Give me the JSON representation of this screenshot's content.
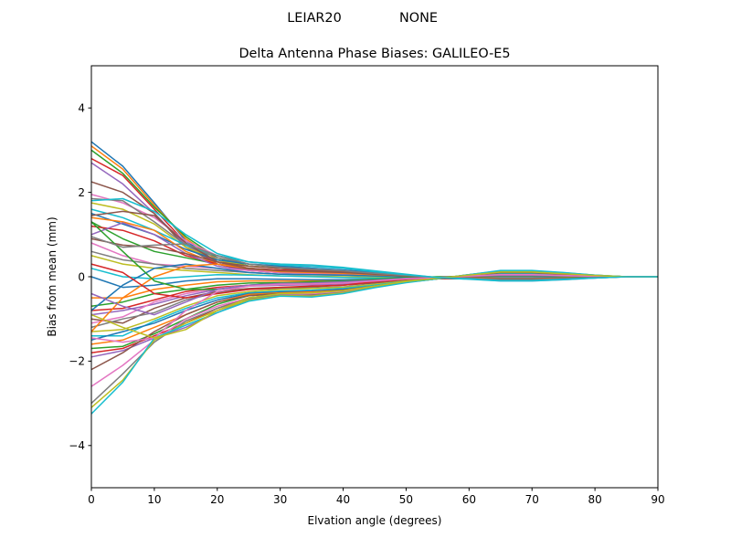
{
  "figure": {
    "suptitle_antenna": "LEIAR20",
    "suptitle_radome": "NONE"
  },
  "chart_data": {
    "type": "line",
    "title": "Delta Antenna Phase Biases: GALILEO-E5",
    "xlabel": "Elvation angle (degrees)",
    "ylabel": "Bias from mean (mm)",
    "xlim": [
      0,
      90
    ],
    "ylim": [
      -5,
      5
    ],
    "xticks": [
      0,
      10,
      20,
      30,
      40,
      50,
      60,
      70,
      80,
      90
    ],
    "yticks": [
      -4,
      -2,
      0,
      2,
      4
    ],
    "ytick_labels": [
      "−4",
      "−2",
      "0",
      "2",
      "4"
    ],
    "grid": false,
    "legend": "none",
    "x": [
      0,
      5,
      10,
      15,
      20,
      25,
      30,
      35,
      40,
      45,
      50,
      55,
      60,
      65,
      70,
      75,
      80,
      85,
      90
    ],
    "series": [
      {
        "values": [
          3.2,
          2.62,
          1.75,
          0.85,
          0.35,
          0.18,
          0.12,
          0.1,
          0.08,
          0.05,
          0.0,
          -0.05,
          -0.05,
          -0.08,
          -0.08,
          -0.05,
          -0.03,
          0.0,
          0.0
        ]
      },
      {
        "values": [
          3.1,
          2.55,
          1.7,
          0.9,
          0.4,
          0.2,
          0.15,
          0.12,
          0.1,
          0.06,
          0.02,
          -0.03,
          -0.04,
          -0.06,
          -0.06,
          -0.04,
          -0.02,
          0.0,
          0.0
        ]
      },
      {
        "values": [
          3.0,
          2.45,
          1.65,
          0.95,
          0.45,
          0.25,
          0.2,
          0.15,
          0.12,
          0.08,
          0.03,
          -0.02,
          -0.03,
          -0.05,
          -0.05,
          -0.03,
          -0.02,
          0.0,
          0.0
        ]
      },
      {
        "values": [
          2.8,
          2.4,
          1.6,
          0.8,
          0.3,
          0.15,
          0.1,
          0.08,
          0.05,
          0.02,
          -0.02,
          -0.05,
          -0.04,
          -0.06,
          -0.06,
          -0.04,
          -0.02,
          0.0,
          0.0
        ]
      },
      {
        "values": [
          2.7,
          2.2,
          1.5,
          0.75,
          0.35,
          0.2,
          0.12,
          0.1,
          0.08,
          0.05,
          0.0,
          -0.03,
          -0.03,
          -0.05,
          -0.05,
          -0.03,
          -0.02,
          0.0,
          0.0
        ]
      },
      {
        "values": [
          2.25,
          2.0,
          1.5,
          0.7,
          0.3,
          0.18,
          0.14,
          0.1,
          0.08,
          0.05,
          0.02,
          -0.02,
          -0.03,
          -0.04,
          -0.04,
          -0.03,
          -0.01,
          0.0,
          0.0
        ]
      },
      {
        "values": [
          1.95,
          1.75,
          1.4,
          0.85,
          0.5,
          0.35,
          0.28,
          0.25,
          0.2,
          0.12,
          0.05,
          -0.02,
          -0.05,
          -0.1,
          -0.1,
          -0.07,
          -0.03,
          0.0,
          0.0
        ]
      },
      {
        "values": [
          1.85,
          1.8,
          1.3,
          0.75,
          0.45,
          0.3,
          0.25,
          0.2,
          0.15,
          0.1,
          0.04,
          -0.02,
          -0.05,
          -0.08,
          -0.08,
          -0.06,
          -0.02,
          0.0,
          0.0
        ]
      },
      {
        "values": [
          1.75,
          1.6,
          1.25,
          0.7,
          0.4,
          0.25,
          0.2,
          0.18,
          0.14,
          0.08,
          0.03,
          -0.03,
          -0.04,
          -0.07,
          -0.07,
          -0.05,
          -0.02,
          0.0,
          0.0
        ]
      },
      {
        "values": [
          1.6,
          1.4,
          1.1,
          0.75,
          0.5,
          0.35,
          0.3,
          0.28,
          0.22,
          0.14,
          0.06,
          -0.02,
          -0.06,
          -0.1,
          -0.1,
          -0.07,
          -0.03,
          0.0,
          0.0
        ]
      },
      {
        "values": [
          1.5,
          1.25,
          1.0,
          0.65,
          0.4,
          0.3,
          0.25,
          0.2,
          0.16,
          0.1,
          0.04,
          -0.02,
          -0.04,
          -0.07,
          -0.07,
          -0.05,
          -0.02,
          0.0,
          0.0
        ]
      },
      {
        "values": [
          1.4,
          1.3,
          1.1,
          0.6,
          0.3,
          0.2,
          0.15,
          0.13,
          0.1,
          0.06,
          0.02,
          -0.03,
          -0.04,
          -0.06,
          -0.06,
          -0.04,
          -0.02,
          0.0,
          0.0
        ]
      },
      {
        "values": [
          1.3,
          0.9,
          0.6,
          0.45,
          0.3,
          0.2,
          0.15,
          0.12,
          0.1,
          0.06,
          0.02,
          -0.02,
          -0.03,
          -0.05,
          -0.05,
          -0.03,
          -0.01,
          0.0,
          0.0
        ]
      },
      {
        "values": [
          1.2,
          1.1,
          0.85,
          0.5,
          0.3,
          0.2,
          0.16,
          0.14,
          0.1,
          0.06,
          0.02,
          -0.02,
          -0.03,
          -0.05,
          -0.05,
          -0.03,
          -0.01,
          0.0,
          0.0
        ]
      },
      {
        "values": [
          1.0,
          1.28,
          1.0,
          0.55,
          0.25,
          0.15,
          0.1,
          0.08,
          0.06,
          0.03,
          0.0,
          -0.03,
          -0.03,
          -0.05,
          -0.05,
          -0.03,
          -0.01,
          0.0,
          0.0
        ]
      },
      {
        "values": [
          0.9,
          0.75,
          0.7,
          0.55,
          0.35,
          0.25,
          0.2,
          0.15,
          0.12,
          0.08,
          0.03,
          -0.02,
          -0.04,
          -0.07,
          -0.07,
          -0.05,
          -0.02,
          0.0,
          0.0
        ]
      },
      {
        "values": [
          0.8,
          0.5,
          0.3,
          0.25,
          0.2,
          0.15,
          0.1,
          0.08,
          0.06,
          0.04,
          0.02,
          -0.01,
          -0.02,
          -0.04,
          -0.04,
          -0.03,
          -0.01,
          0.0,
          0.0
        ]
      },
      {
        "values": [
          0.6,
          0.4,
          0.3,
          0.2,
          0.15,
          0.1,
          0.06,
          0.05,
          0.04,
          0.02,
          0.0,
          -0.02,
          -0.03,
          -0.04,
          -0.04,
          -0.03,
          -0.01,
          0.0,
          0.0
        ]
      },
      {
        "values": [
          0.5,
          0.3,
          0.2,
          0.15,
          0.1,
          0.05,
          0.02,
          0.01,
          0.0,
          -0.01,
          -0.02,
          -0.03,
          -0.03,
          -0.04,
          -0.04,
          -0.03,
          -0.01,
          0.0,
          0.0
        ]
      },
      {
        "values": [
          0.2,
          0.0,
          -0.05,
          0.0,
          0.05,
          0.04,
          0.02,
          0.0,
          -0.02,
          -0.03,
          -0.03,
          -0.03,
          -0.02,
          -0.03,
          -0.03,
          -0.02,
          -0.01,
          0.0,
          0.0
        ]
      },
      {
        "values": [
          0.0,
          -0.25,
          -0.2,
          -0.1,
          -0.05,
          -0.05,
          -0.06,
          -0.07,
          -0.07,
          -0.06,
          -0.04,
          -0.03,
          -0.01,
          0.0,
          0.0,
          0.0,
          0.0,
          0.0,
          0.0
        ]
      },
      {
        "values": [
          -0.5,
          -0.5,
          -0.3,
          -0.2,
          -0.12,
          -0.1,
          -0.1,
          -0.1,
          -0.1,
          -0.08,
          -0.05,
          -0.03,
          -0.01,
          0.01,
          0.01,
          0.01,
          0.0,
          0.0,
          0.0
        ]
      },
      {
        "values": [
          -0.7,
          -0.6,
          -0.4,
          -0.3,
          -0.2,
          -0.15,
          -0.14,
          -0.14,
          -0.13,
          -0.1,
          -0.06,
          -0.03,
          0.0,
          0.02,
          0.02,
          0.01,
          0.0,
          0.0,
          0.0
        ]
      },
      {
        "values": [
          -0.8,
          -0.75,
          -0.55,
          -0.35,
          -0.25,
          -0.2,
          -0.18,
          -0.17,
          -0.15,
          -0.12,
          -0.07,
          -0.03,
          0.0,
          0.03,
          0.03,
          0.02,
          0.01,
          0.0,
          0.0
        ]
      },
      {
        "values": [
          -0.9,
          -0.8,
          -0.65,
          -0.45,
          -0.3,
          -0.22,
          -0.2,
          -0.19,
          -0.17,
          -0.13,
          -0.08,
          -0.03,
          0.01,
          0.04,
          0.04,
          0.03,
          0.01,
          0.0,
          0.0
        ]
      },
      {
        "values": [
          -1.0,
          -1.1,
          -0.75,
          -0.5,
          -0.35,
          -0.28,
          -0.25,
          -0.24,
          -0.2,
          -0.15,
          -0.08,
          -0.03,
          0.02,
          0.05,
          0.05,
          0.03,
          0.01,
          0.0,
          0.0
        ]
      },
      {
        "values": [
          -1.1,
          -0.95,
          -0.6,
          -0.4,
          -0.28,
          -0.2,
          -0.18,
          -0.17,
          -0.15,
          -0.11,
          -0.06,
          -0.02,
          0.02,
          0.04,
          0.04,
          0.03,
          0.01,
          0.0,
          0.0
        ]
      },
      {
        "values": [
          -1.2,
          -1.0,
          -0.85,
          -0.55,
          -0.38,
          -0.3,
          -0.28,
          -0.27,
          -0.24,
          -0.18,
          -0.1,
          -0.04,
          0.02,
          0.06,
          0.06,
          0.04,
          0.02,
          0.0,
          0.0
        ]
      },
      {
        "values": [
          -1.3,
          -1.25,
          -1.0,
          -0.7,
          -0.45,
          -0.35,
          -0.3,
          -0.28,
          -0.25,
          -0.18,
          -0.1,
          -0.04,
          0.02,
          0.07,
          0.07,
          0.05,
          0.02,
          0.0,
          0.0
        ]
      },
      {
        "values": [
          -1.4,
          -1.4,
          -1.05,
          -0.75,
          -0.5,
          -0.38,
          -0.34,
          -0.32,
          -0.28,
          -0.2,
          -0.11,
          -0.04,
          0.03,
          0.08,
          0.08,
          0.05,
          0.02,
          0.0,
          0.0
        ]
      },
      {
        "values": [
          -1.5,
          -1.3,
          -1.1,
          -0.8,
          -0.55,
          -0.4,
          -0.36,
          -0.34,
          -0.3,
          -0.22,
          -0.12,
          -0.05,
          0.03,
          0.09,
          0.09,
          0.06,
          0.02,
          0.0,
          0.0
        ]
      },
      {
        "values": [
          -1.6,
          -1.5,
          -1.2,
          -0.9,
          -0.6,
          -0.42,
          -0.38,
          -0.36,
          -0.32,
          -0.23,
          -0.12,
          -0.05,
          0.03,
          0.1,
          0.1,
          0.06,
          0.03,
          0.0,
          0.0
        ]
      },
      {
        "values": [
          -1.7,
          -1.65,
          -1.35,
          -1.0,
          -0.65,
          -0.45,
          -0.4,
          -0.4,
          -0.35,
          -0.24,
          -0.13,
          -0.05,
          0.04,
          0.11,
          0.11,
          0.07,
          0.03,
          0.0,
          0.0
        ]
      },
      {
        "values": [
          -1.8,
          -1.7,
          -1.4,
          -1.1,
          -0.75,
          -0.5,
          -0.42,
          -0.42,
          -0.36,
          -0.25,
          -0.13,
          -0.05,
          0.04,
          0.12,
          0.12,
          0.08,
          0.03,
          0.0,
          0.0
        ]
      },
      {
        "values": [
          -1.9,
          -1.75,
          -1.45,
          -1.2,
          -0.85,
          -0.55,
          -0.44,
          -0.45,
          -0.38,
          -0.25,
          -0.13,
          -0.05,
          0.05,
          0.13,
          0.13,
          0.08,
          0.03,
          0.0,
          0.0
        ]
      },
      {
        "values": [
          -2.2,
          -1.8,
          -1.3,
          -0.9,
          -0.6,
          -0.45,
          -0.4,
          -0.38,
          -0.32,
          -0.22,
          -0.12,
          -0.05,
          0.03,
          0.1,
          0.1,
          0.06,
          0.03,
          0.0,
          0.0
        ]
      },
      {
        "values": [
          -2.6,
          -2.1,
          -1.5,
          -1.0,
          -0.7,
          -0.5,
          -0.42,
          -0.4,
          -0.35,
          -0.24,
          -0.12,
          -0.05,
          0.04,
          0.12,
          0.12,
          0.08,
          0.03,
          0.0,
          0.0
        ]
      },
      {
        "values": [
          -3.0,
          -2.3,
          -1.55,
          -1.05,
          -0.75,
          -0.52,
          -0.44,
          -0.44,
          -0.37,
          -0.25,
          -0.13,
          -0.05,
          0.05,
          0.13,
          0.13,
          0.09,
          0.04,
          0.0,
          0.0
        ]
      },
      {
        "values": [
          -3.1,
          -2.45,
          -1.5,
          -1.1,
          -0.8,
          -0.55,
          -0.45,
          -0.46,
          -0.38,
          -0.25,
          -0.13,
          -0.05,
          0.05,
          0.14,
          0.14,
          0.09,
          0.04,
          0.0,
          0.0
        ]
      },
      {
        "values": [
          -3.25,
          -2.5,
          -1.45,
          -1.15,
          -0.85,
          -0.58,
          -0.46,
          -0.48,
          -0.4,
          -0.26,
          -0.14,
          -0.05,
          0.05,
          0.15,
          0.15,
          0.1,
          0.04,
          0.0,
          0.0
        ]
      },
      {
        "values": [
          -0.8,
          -0.2,
          0.2,
          0.3,
          0.2,
          0.1,
          0.06,
          0.05,
          0.04,
          0.02,
          0.0,
          -0.02,
          -0.03,
          -0.04,
          -0.04,
          -0.03,
          -0.01,
          0.0,
          0.0
        ]
      },
      {
        "values": [
          -1.3,
          -0.5,
          0.0,
          0.25,
          0.3,
          0.2,
          0.12,
          0.1,
          0.08,
          0.05,
          0.02,
          -0.02,
          -0.03,
          -0.05,
          -0.05,
          -0.03,
          -0.01,
          0.0,
          0.0
        ]
      },
      {
        "values": [
          1.3,
          0.6,
          -0.1,
          -0.3,
          -0.3,
          -0.2,
          -0.15,
          -0.12,
          -0.1,
          -0.06,
          -0.02,
          0.0,
          0.01,
          0.02,
          0.02,
          0.01,
          0.0,
          0.0,
          0.0
        ]
      },
      {
        "values": [
          0.3,
          0.1,
          -0.4,
          -0.5,
          -0.4,
          -0.3,
          -0.25,
          -0.22,
          -0.2,
          -0.12,
          -0.06,
          -0.02,
          0.01,
          0.04,
          0.04,
          0.03,
          0.01,
          0.0,
          0.0
        ]
      },
      {
        "values": [
          -0.4,
          -0.7,
          -0.9,
          -0.6,
          -0.3,
          -0.2,
          -0.16,
          -0.15,
          -0.12,
          -0.08,
          -0.04,
          -0.02,
          0.01,
          0.03,
          0.03,
          0.02,
          0.01,
          0.0,
          0.0
        ]
      },
      {
        "values": [
          1.45,
          1.55,
          1.45,
          0.8,
          0.35,
          0.2,
          0.14,
          0.12,
          0.1,
          0.06,
          0.02,
          -0.03,
          -0.04,
          -0.06,
          -0.06,
          -0.04,
          -0.02,
          0.0,
          0.0
        ]
      },
      {
        "values": [
          -1.45,
          -1.55,
          -1.45,
          -0.8,
          -0.35,
          -0.22,
          -0.18,
          -0.17,
          -0.15,
          -0.1,
          -0.05,
          -0.02,
          0.02,
          0.05,
          0.05,
          0.03,
          0.01,
          0.0,
          0.0
        ]
      },
      {
        "values": [
          0.95,
          0.7,
          0.75,
          0.78,
          0.5,
          0.3,
          0.22,
          0.18,
          0.14,
          0.08,
          0.03,
          -0.02,
          -0.04,
          -0.07,
          -0.07,
          -0.05,
          -0.02,
          0.0,
          0.0
        ]
      },
      {
        "values": [
          -0.9,
          -1.2,
          -1.45,
          -1.25,
          -0.8,
          -0.5,
          -0.4,
          -0.38,
          -0.33,
          -0.22,
          -0.11,
          -0.04,
          0.04,
          0.11,
          0.11,
          0.07,
          0.03,
          0.0,
          0.0
        ]
      },
      {
        "values": [
          1.8,
          1.85,
          1.55,
          1.0,
          0.55,
          0.35,
          0.28,
          0.24,
          0.2,
          0.12,
          0.05,
          -0.02,
          -0.05,
          -0.09,
          -0.09,
          -0.06,
          -0.03,
          0.0,
          0.0
        ]
      }
    ]
  }
}
